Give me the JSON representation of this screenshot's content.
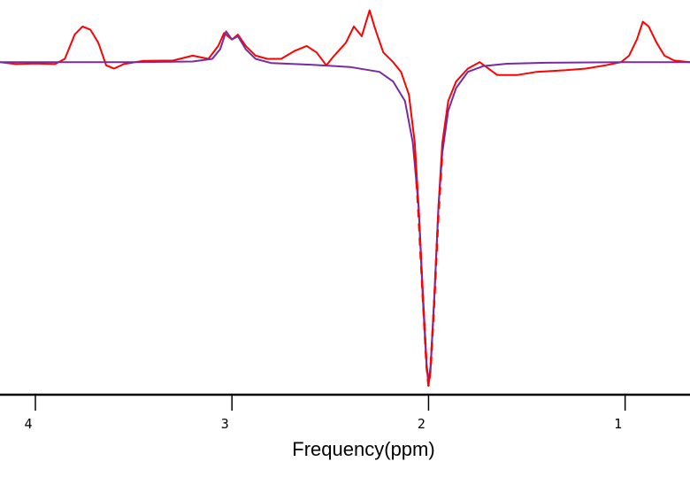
{
  "chart_data": {
    "type": "line",
    "title": "",
    "xlabel": "Frequency(ppm)",
    "ylabel": "",
    "x_reversed": true,
    "xlim": [
      4.18,
      0.67
    ],
    "ylim": [
      -1.0,
      0.17
    ],
    "grid": false,
    "xticks": [
      {
        "value": 4,
        "label": "4"
      },
      {
        "value": 3,
        "label": "3"
      },
      {
        "value": 2,
        "label": "2"
      },
      {
        "value": 1,
        "label": "1"
      }
    ],
    "series": [
      {
        "color": "#ff0000",
        "points": [
          [
            4.18,
            0.0
          ],
          [
            4.1,
            -0.006
          ],
          [
            4.0,
            -0.004
          ],
          [
            3.9,
            -0.006
          ],
          [
            3.85,
            0.01
          ],
          [
            3.8,
            0.085
          ],
          [
            3.76,
            0.11
          ],
          [
            3.72,
            0.1
          ],
          [
            3.68,
            0.06
          ],
          [
            3.64,
            -0.01
          ],
          [
            3.6,
            -0.02
          ],
          [
            3.55,
            -0.006
          ],
          [
            3.45,
            0.004
          ],
          [
            3.3,
            0.005
          ],
          [
            3.2,
            0.02
          ],
          [
            3.12,
            0.01
          ],
          [
            3.07,
            0.05
          ],
          [
            3.04,
            0.09
          ],
          [
            3.0,
            0.07
          ],
          [
            2.97,
            0.085
          ],
          [
            2.93,
            0.05
          ],
          [
            2.88,
            0.02
          ],
          [
            2.82,
            0.01
          ],
          [
            2.75,
            0.01
          ],
          [
            2.68,
            0.035
          ],
          [
            2.62,
            0.05
          ],
          [
            2.57,
            0.03
          ],
          [
            2.52,
            -0.01
          ],
          [
            2.48,
            0.02
          ],
          [
            2.42,
            0.06
          ],
          [
            2.38,
            0.11
          ],
          [
            2.34,
            0.08
          ],
          [
            2.3,
            0.16
          ],
          [
            2.27,
            0.1
          ],
          [
            2.23,
            0.03
          ],
          [
            2.18,
            0.0
          ],
          [
            2.14,
            -0.03
          ],
          [
            2.1,
            -0.1
          ],
          [
            2.07,
            -0.25
          ],
          [
            2.05,
            -0.45
          ],
          [
            2.03,
            -0.7
          ],
          [
            2.01,
            -0.93
          ],
          [
            2.0,
            -1.0
          ],
          [
            1.99,
            -0.95
          ],
          [
            1.97,
            -0.72
          ],
          [
            1.95,
            -0.45
          ],
          [
            1.93,
            -0.25
          ],
          [
            1.9,
            -0.12
          ],
          [
            1.86,
            -0.06
          ],
          [
            1.8,
            -0.02
          ],
          [
            1.74,
            0.0
          ],
          [
            1.65,
            -0.04
          ],
          [
            1.55,
            -0.04
          ],
          [
            1.45,
            -0.03
          ],
          [
            1.3,
            -0.025
          ],
          [
            1.2,
            -0.02
          ],
          [
            1.1,
            -0.01
          ],
          [
            1.02,
            0.0
          ],
          [
            0.98,
            0.02
          ],
          [
            0.94,
            0.07
          ],
          [
            0.91,
            0.125
          ],
          [
            0.88,
            0.11
          ],
          [
            0.84,
            0.06
          ],
          [
            0.8,
            0.02
          ],
          [
            0.75,
            0.005
          ],
          [
            0.67,
            0.0
          ]
        ]
      },
      {
        "color": "#7a2aa0",
        "points": [
          [
            4.18,
            0.0
          ],
          [
            3.5,
            0.0
          ],
          [
            3.2,
            0.002
          ],
          [
            3.1,
            0.01
          ],
          [
            3.06,
            0.04
          ],
          [
            3.03,
            0.095
          ],
          [
            3.0,
            0.07
          ],
          [
            2.97,
            0.08
          ],
          [
            2.93,
            0.04
          ],
          [
            2.88,
            0.01
          ],
          [
            2.8,
            -0.003
          ],
          [
            2.6,
            -0.008
          ],
          [
            2.4,
            -0.015
          ],
          [
            2.25,
            -0.03
          ],
          [
            2.18,
            -0.06
          ],
          [
            2.12,
            -0.12
          ],
          [
            2.08,
            -0.25
          ],
          [
            2.05,
            -0.45
          ],
          [
            2.03,
            -0.72
          ],
          [
            2.01,
            -0.94
          ],
          [
            2.0,
            -0.985
          ],
          [
            1.99,
            -0.94
          ],
          [
            1.97,
            -0.72
          ],
          [
            1.95,
            -0.45
          ],
          [
            1.93,
            -0.28
          ],
          [
            1.9,
            -0.15
          ],
          [
            1.86,
            -0.08
          ],
          [
            1.8,
            -0.03
          ],
          [
            1.72,
            -0.012
          ],
          [
            1.6,
            -0.005
          ],
          [
            1.4,
            -0.002
          ],
          [
            1.0,
            0.0
          ],
          [
            0.67,
            0.0
          ]
        ]
      }
    ],
    "dashed_overlay": {
      "color": "#ff0000",
      "points": [
        [
          2.07,
          -0.28
        ],
        [
          2.05,
          -0.48
        ],
        [
          2.03,
          -0.72
        ],
        [
          2.01,
          -0.94
        ],
        [
          2.0,
          -1.0
        ],
        [
          1.99,
          -0.95
        ],
        [
          1.97,
          -0.73
        ],
        [
          1.95,
          -0.47
        ],
        [
          1.93,
          -0.28
        ]
      ]
    }
  }
}
